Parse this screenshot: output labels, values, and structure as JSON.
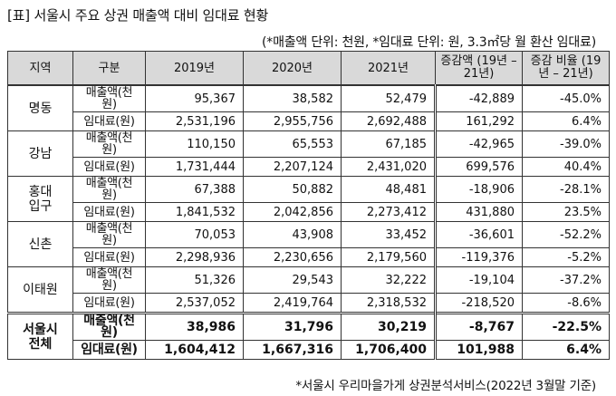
{
  "title": "[표] 서울시 주요 상권 매출액 대비 임대료 현황",
  "unit_note": "(*매출액 단위: 천원, *임대료 단위: 원, 3.3㎡당 월 환산 임대료)",
  "headers": {
    "region": "지역",
    "category": "구분",
    "y2019": "2019년",
    "y2020": "2020년",
    "y2021": "2021년",
    "change_amount": "증감액 (19년 – 21년)",
    "change_rate": "증감 비율 (19년 – 21년)"
  },
  "rows": [
    {
      "region": "명동",
      "sales": {
        "label": "매출액(천원)",
        "y2019": "95,367",
        "y2020": "38,582",
        "y2021": "52,479",
        "diff": "-42,889",
        "rate": "-45.0%"
      },
      "rent": {
        "label": "임대료(원)",
        "y2019": "2,531,196",
        "y2020": "2,955,756",
        "y2021": "2,692,488",
        "diff": "161,292",
        "rate": "6.4%"
      }
    },
    {
      "region": "강남",
      "sales": {
        "label": "매출액(천원)",
        "y2019": "110,150",
        "y2020": "65,553",
        "y2021": "67,185",
        "diff": "-42,965",
        "rate": "-39.0%"
      },
      "rent": {
        "label": "임대료(원)",
        "y2019": "1,731,444",
        "y2020": "2,207,124",
        "y2021": "2,431,020",
        "diff": "699,576",
        "rate": "40.4%"
      }
    },
    {
      "region": "홍대입구",
      "sales": {
        "label": "매출액(천원)",
        "y2019": "67,388",
        "y2020": "50,882",
        "y2021": "48,481",
        "diff": "-18,906",
        "rate": "-28.1%"
      },
      "rent": {
        "label": "임대료(원)",
        "y2019": "1,841,532",
        "y2020": "2,042,856",
        "y2021": "2,273,412",
        "diff": "431,880",
        "rate": "23.5%"
      }
    },
    {
      "region": "신촌",
      "sales": {
        "label": "매출액(천원)",
        "y2019": "70,053",
        "y2020": "43,908",
        "y2021": "33,452",
        "diff": "-36,601",
        "rate": "-52.2%"
      },
      "rent": {
        "label": "임대료(원)",
        "y2019": "2,298,936",
        "y2020": "2,230,656",
        "y2021": "2,179,560",
        "diff": "-119,376",
        "rate": "-5.2%"
      }
    },
    {
      "region": "이태원",
      "sales": {
        "label": "매출액(천원)",
        "y2019": "51,326",
        "y2020": "29,543",
        "y2021": "32,222",
        "diff": "-19,104",
        "rate": "-37.2%"
      },
      "rent": {
        "label": "임대료(원)",
        "y2019": "2,537,052",
        "y2020": "2,419,764",
        "y2021": "2,318,532",
        "diff": "-218,520",
        "rate": "-8.6%"
      }
    }
  ],
  "total": {
    "region": "서울시 전체",
    "sales": {
      "label": "매출액(천원)",
      "y2019": "38,986",
      "y2020": "31,796",
      "y2021": "30,219",
      "diff": "-8,767",
      "rate": "-22.5%"
    },
    "rent": {
      "label": "임대료(원)",
      "y2019": "1,604,412",
      "y2020": "1,667,316",
      "y2021": "1,706,400",
      "diff": "101,988",
      "rate": "6.4%"
    }
  },
  "footnote": "*서울시 우리마을가게 상권분석서비스(2022년 3월말 기준)"
}
